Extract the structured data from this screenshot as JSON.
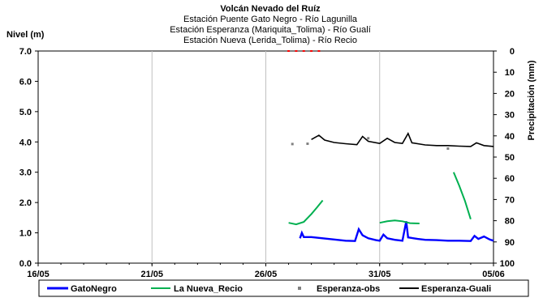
{
  "chart_data": {
    "type": "line",
    "title": "Volcán Nevado del Ruíz",
    "subtitle_lines": [
      "Estación Puente Gato Negro - Río Lagunilla",
      "Estación Esperanza (Mariquita_Tolima) - Río Gualí",
      "Estación Nueva (Lerida_Tolima) - Río Recio"
    ],
    "ylabel": "Nivel (m)",
    "y2label": "Precipitación (mm)",
    "x_range": [
      "16/05",
      "05/06"
    ],
    "x_ticks": [
      "16/05",
      "21/05",
      "26/05",
      "31/05",
      "05/06"
    ],
    "ylim": [
      0,
      7
    ],
    "y_ticks": [
      "0.0",
      "1.0",
      "2.0",
      "3.0",
      "4.0",
      "5.0",
      "6.0",
      "7.0"
    ],
    "y2lim": [
      0,
      100
    ],
    "y2_reversed": true,
    "y2_ticks": [
      "0",
      "10",
      "20",
      "30",
      "40",
      "50",
      "60",
      "70",
      "80",
      "90",
      "100"
    ],
    "grid": true,
    "legend_position": "bottom",
    "colors": {
      "GatoNegro": "#0000ff",
      "La Nueva_Recio": "#00b050",
      "Esperanza-obs": "#808080",
      "Esperanza-Guali": "#000000",
      "rain": "#ff0000"
    },
    "series": [
      {
        "name": "GatoNegro",
        "points": [
          [
            "2012-05-27 12:00",
            0.82
          ],
          [
            "2012-05-27 14:00",
            1.0
          ],
          [
            "2012-05-27 16:00",
            0.86
          ],
          [
            "2012-05-28 00:00",
            0.86
          ],
          [
            "2012-05-28 12:00",
            0.82
          ],
          [
            "2012-05-29 00:00",
            0.78
          ],
          [
            "2012-05-29 12:00",
            0.74
          ],
          [
            "2012-05-29 22:00",
            0.73
          ],
          [
            "2012-05-30 02:00",
            1.12
          ],
          [
            "2012-05-30 06:00",
            0.92
          ],
          [
            "2012-05-30 12:00",
            0.82
          ],
          [
            "2012-05-30 20:00",
            0.76
          ],
          [
            "2012-05-31 00:00",
            0.74
          ],
          [
            "2012-05-31 04:00",
            0.94
          ],
          [
            "2012-05-31 08:00",
            0.82
          ],
          [
            "2012-05-31 16:00",
            0.77
          ],
          [
            "2012-06-01 00:00",
            0.74
          ],
          [
            "2012-06-01 04:00",
            1.38
          ],
          [
            "2012-06-01 06:00",
            0.85
          ],
          [
            "2012-06-01 16:00",
            0.8
          ],
          [
            "2012-06-02 00:00",
            0.77
          ],
          [
            "2012-06-02 12:00",
            0.76
          ],
          [
            "2012-06-03 00:00",
            0.74
          ],
          [
            "2012-06-03 12:00",
            0.74
          ],
          [
            "2012-06-04 00:00",
            0.73
          ],
          [
            "2012-06-04 04:00",
            0.9
          ],
          [
            "2012-06-04 08:00",
            0.8
          ],
          [
            "2012-06-04 14:00",
            0.88
          ],
          [
            "2012-06-04 20:00",
            0.78
          ],
          [
            "2012-06-05 00:00",
            0.74
          ]
        ]
      },
      {
        "name": "La Nueva_Recio",
        "segments": [
          [
            [
              "2012-05-27 00:00",
              1.33
            ],
            [
              "2012-05-27 08:00",
              1.28
            ],
            [
              "2012-05-27 16:00",
              1.36
            ],
            [
              "2012-05-28 00:00",
              1.62
            ],
            [
              "2012-05-28 06:00",
              1.84
            ],
            [
              "2012-05-28 12:00",
              2.07
            ]
          ],
          [
            [
              "2012-05-31 00:00",
              1.33
            ],
            [
              "2012-05-31 08:00",
              1.38
            ],
            [
              "2012-05-31 16:00",
              1.41
            ],
            [
              "2012-06-01 00:00",
              1.38
            ],
            [
              "2012-06-01 08:00",
              1.32
            ],
            [
              "2012-06-01 18:00",
              1.31
            ]
          ],
          [
            [
              "2012-06-03 06:00",
              3.0
            ],
            [
              "2012-06-03 12:00",
              2.55
            ],
            [
              "2012-06-03 18:00",
              2.05
            ],
            [
              "2012-06-04 00:00",
              1.45
            ]
          ]
        ]
      },
      {
        "name": "Esperanza-obs",
        "points": [
          [
            "2012-05-27 04:00",
            3.93
          ],
          [
            "2012-05-27 20:00",
            3.94
          ],
          [
            "2012-05-30 12:00",
            4.12
          ],
          [
            "2012-06-03 00:00",
            3.78
          ]
        ]
      },
      {
        "name": "Esperanza-Guali",
        "points": [
          [
            "2012-05-28 00:00",
            4.08
          ],
          [
            "2012-05-28 08:00",
            4.22
          ],
          [
            "2012-05-28 14:00",
            4.06
          ],
          [
            "2012-05-29 00:00",
            3.98
          ],
          [
            "2012-05-29 12:00",
            3.94
          ],
          [
            "2012-05-30 00:00",
            3.91
          ],
          [
            "2012-05-30 06:00",
            4.18
          ],
          [
            "2012-05-30 12:00",
            4.02
          ],
          [
            "2012-05-31 00:00",
            3.95
          ],
          [
            "2012-05-31 08:00",
            4.12
          ],
          [
            "2012-05-31 16:00",
            3.98
          ],
          [
            "2012-06-01 00:00",
            3.95
          ],
          [
            "2012-06-01 06:00",
            4.28
          ],
          [
            "2012-06-01 10:00",
            3.97
          ],
          [
            "2012-06-02 00:00",
            3.9
          ],
          [
            "2012-06-02 12:00",
            3.88
          ],
          [
            "2012-06-03 00:00",
            3.88
          ],
          [
            "2012-06-03 12:00",
            3.86
          ],
          [
            "2012-06-04 00:00",
            3.85
          ],
          [
            "2012-06-04 06:00",
            3.97
          ],
          [
            "2012-06-04 14:00",
            3.88
          ],
          [
            "2012-06-05 00:00",
            3.85
          ]
        ]
      },
      {
        "name": "Precipitación",
        "axis": "y2",
        "points": [
          [
            "2012-05-27 00:00",
            0.0
          ],
          [
            "2012-05-27 08:00",
            0.0
          ],
          [
            "2012-05-27 16:00",
            0.0
          ],
          [
            "2012-05-28 00:00",
            0.0
          ],
          [
            "2012-05-28 08:00",
            0.0
          ]
        ]
      }
    ]
  }
}
